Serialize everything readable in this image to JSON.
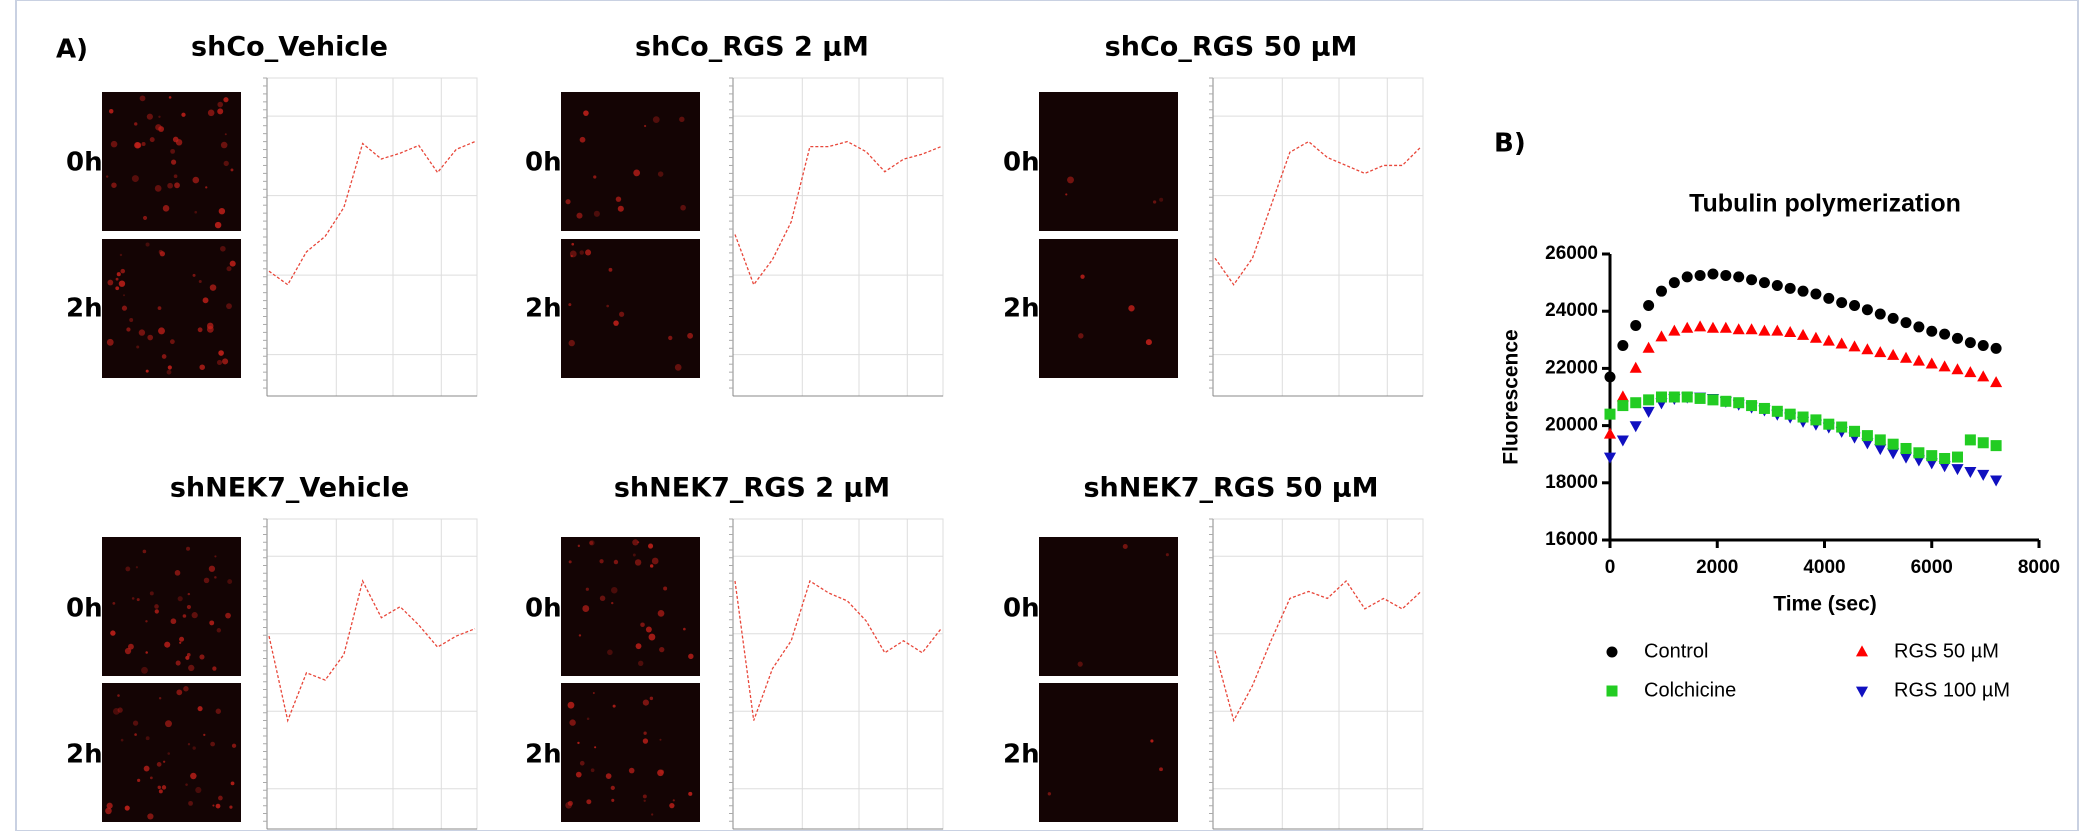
{
  "panel_labels": [
    "A)",
    "B)"
  ],
  "time_points": [
    "0h",
    "2h"
  ],
  "chart_data": [
    {
      "type": "line",
      "title": "shCo_Vehicle",
      "color": "#e8473a",
      "values": [
        112,
        105,
        122,
        130,
        145,
        178,
        170,
        173,
        177,
        163,
        175,
        179
      ]
    },
    {
      "type": "line",
      "title": "shCo_RGS 2 µM",
      "color": "#e8473a",
      "values": [
        55,
        35,
        45,
        60,
        90,
        90,
        92,
        88,
        80,
        85,
        87,
        90
      ]
    },
    {
      "type": "line",
      "title": "shCo_RGS 50 µM",
      "color": "#e8473a",
      "values": [
        50,
        40,
        50,
        70,
        90,
        94,
        88,
        85,
        82,
        85,
        85,
        92
      ]
    },
    {
      "type": "line",
      "title": "shNEK7_Vehicle",
      "color": "#e8473a",
      "values": [
        127,
        104,
        117,
        115,
        122,
        142,
        132,
        135,
        130,
        124,
        127,
        129
      ]
    },
    {
      "type": "line",
      "title": "shNEK7_RGS 2 µM",
      "color": "#e8473a",
      "values": [
        132,
        97,
        110,
        117,
        132,
        129,
        127,
        122,
        114,
        117,
        114,
        120
      ]
    },
    {
      "type": "line",
      "title": "shNEK7_RGS 50 µM",
      "color": "#e8473a",
      "values": [
        57,
        37,
        47,
        60,
        72,
        74,
        72,
        77,
        69,
        72,
        69,
        74
      ]
    },
    {
      "type": "scatter",
      "title": "Tubulin polymerization",
      "x_label": "Time (sec)",
      "y_label": "Fluorescence",
      "xlim": [
        0,
        8000
      ],
      "ylim": [
        16000,
        26000
      ],
      "xticks": [
        0,
        2000,
        4000,
        6000,
        8000
      ],
      "yticks": [
        16000,
        18000,
        20000,
        22000,
        24000,
        26000
      ],
      "x": [
        0,
        240,
        480,
        720,
        960,
        1200,
        1440,
        1680,
        1920,
        2160,
        2400,
        2640,
        2880,
        3120,
        3360,
        3600,
        3840,
        4080,
        4320,
        4560,
        4800,
        5040,
        5280,
        5520,
        5760,
        6000,
        6240,
        6480,
        6720,
        6960,
        7200
      ],
      "series": [
        {
          "name": "Control",
          "color": "#000000",
          "marker": "circle",
          "values": [
            21700,
            22800,
            23500,
            24200,
            24700,
            25000,
            25200,
            25250,
            25300,
            25250,
            25200,
            25100,
            25000,
            24900,
            24800,
            24700,
            24600,
            24450,
            24300,
            24200,
            24050,
            23900,
            23750,
            23600,
            23450,
            23300,
            23200,
            23050,
            22900,
            22800,
            22700
          ]
        },
        {
          "name": "RGS 50 µM",
          "color": "#ff0000",
          "marker": "triangle-up",
          "values": [
            19700,
            21000,
            22000,
            22700,
            23100,
            23300,
            23400,
            23450,
            23400,
            23400,
            23350,
            23350,
            23300,
            23300,
            23250,
            23150,
            23050,
            22950,
            22850,
            22750,
            22650,
            22550,
            22450,
            22350,
            22250,
            22150,
            22050,
            21950,
            21850,
            21700,
            21500
          ]
        },
        {
          "name": "RGS 100 µM",
          "color": "#1010c0",
          "marker": "triangle-down",
          "values": [
            18900,
            19500,
            20000,
            20500,
            20800,
            20950,
            21000,
            21000,
            20950,
            20850,
            20750,
            20650,
            20550,
            20400,
            20300,
            20150,
            20050,
            19950,
            19800,
            19600,
            19400,
            19200,
            19050,
            18900,
            18800,
            18700,
            18600,
            18500,
            18400,
            18300,
            18100
          ]
        },
        {
          "name": "Colchicine",
          "color": "#22cc22",
          "marker": "square",
          "values": [
            20400,
            20700,
            20800,
            20900,
            21000,
            21000,
            21000,
            20950,
            20900,
            20850,
            20800,
            20700,
            20600,
            20500,
            20400,
            20300,
            20200,
            20050,
            19950,
            19800,
            19650,
            19500,
            19350,
            19200,
            19050,
            18950,
            18850,
            18900,
            19500,
            19400,
            19300
          ]
        }
      ]
    }
  ]
}
